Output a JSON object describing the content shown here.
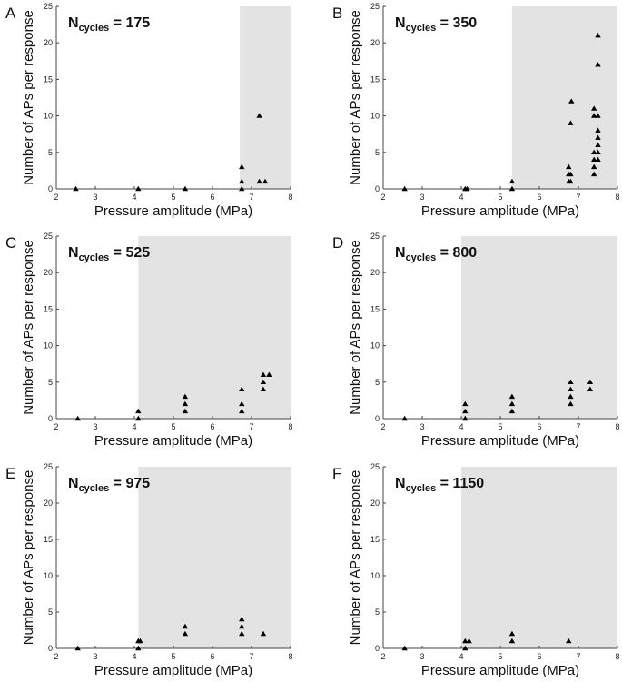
{
  "chart_data": [
    {
      "panel": "A",
      "type": "scatter",
      "annotation": {
        "main": "N",
        "sub": "cycles",
        "rest": " = 175"
      },
      "xlabel": "Pressure amplitude (MPa)",
      "ylabel": "Number of APs per response",
      "xlim": [
        2,
        8
      ],
      "ylim": [
        0,
        25
      ],
      "xticks": [
        2,
        3,
        4,
        5,
        6,
        7,
        8
      ],
      "yticks": [
        0,
        5,
        10,
        15,
        20,
        25
      ],
      "shade_from_x": 6.7,
      "points": [
        [
          2.5,
          0
        ],
        [
          4.1,
          0
        ],
        [
          5.3,
          0
        ],
        [
          6.75,
          0
        ],
        [
          6.75,
          1
        ],
        [
          6.75,
          3
        ],
        [
          7.2,
          1
        ],
        [
          7.2,
          10
        ],
        [
          7.35,
          1
        ]
      ]
    },
    {
      "panel": "B",
      "type": "scatter",
      "annotation": {
        "main": "N",
        "sub": "cycles",
        "rest": " = 350"
      },
      "xlabel": "Pressure amplitude (MPa)",
      "ylabel": "Number of APs per response",
      "xlim": [
        2,
        8
      ],
      "ylim": [
        0,
        25
      ],
      "xticks": [
        2,
        3,
        4,
        5,
        6,
        7,
        8
      ],
      "yticks": [
        0,
        5,
        10,
        15,
        20,
        25
      ],
      "shade_from_x": 5.3,
      "points": [
        [
          2.55,
          0
        ],
        [
          4.1,
          0
        ],
        [
          4.15,
          0
        ],
        [
          5.3,
          0
        ],
        [
          5.3,
          1
        ],
        [
          6.75,
          1
        ],
        [
          6.8,
          1
        ],
        [
          6.75,
          2
        ],
        [
          6.8,
          2
        ],
        [
          6.75,
          3
        ],
        [
          6.8,
          9
        ],
        [
          6.82,
          12
        ],
        [
          7.4,
          2
        ],
        [
          7.4,
          3
        ],
        [
          7.4,
          4
        ],
        [
          7.4,
          5
        ],
        [
          7.4,
          10
        ],
        [
          7.4,
          11
        ],
        [
          7.5,
          4
        ],
        [
          7.5,
          5
        ],
        [
          7.5,
          6
        ],
        [
          7.5,
          7
        ],
        [
          7.5,
          8
        ],
        [
          7.5,
          10
        ],
        [
          7.5,
          17
        ],
        [
          7.5,
          21
        ]
      ]
    },
    {
      "panel": "C",
      "type": "scatter",
      "annotation": {
        "main": "N",
        "sub": "cycles",
        "rest": " = 525"
      },
      "xlabel": "Pressure amplitude (MPa)",
      "ylabel": "Number of APs per response",
      "xlim": [
        2,
        8
      ],
      "ylim": [
        0,
        25
      ],
      "xticks": [
        2,
        3,
        4,
        5,
        6,
        7,
        8
      ],
      "yticks": [
        0,
        5,
        10,
        15,
        20,
        25
      ],
      "shade_from_x": 4.1,
      "points": [
        [
          2.55,
          0
        ],
        [
          4.1,
          0
        ],
        [
          4.1,
          1
        ],
        [
          5.3,
          1
        ],
        [
          5.3,
          2
        ],
        [
          5.3,
          3
        ],
        [
          6.75,
          1
        ],
        [
          6.75,
          2
        ],
        [
          6.75,
          4
        ],
        [
          7.3,
          4
        ],
        [
          7.3,
          5
        ],
        [
          7.3,
          6
        ],
        [
          7.45,
          6
        ]
      ]
    },
    {
      "panel": "D",
      "type": "scatter",
      "annotation": {
        "main": "N",
        "sub": "cycles",
        "rest": " = 800"
      },
      "xlabel": "Pressure amplitude (MPa)",
      "ylabel": "Number of APs per response",
      "xlim": [
        2,
        8
      ],
      "ylim": [
        0,
        25
      ],
      "xticks": [
        2,
        3,
        4,
        5,
        6,
        7,
        8
      ],
      "yticks": [
        0,
        5,
        10,
        15,
        20,
        25
      ],
      "shade_from_x": 4.0,
      "points": [
        [
          2.55,
          0
        ],
        [
          4.1,
          0
        ],
        [
          4.1,
          1
        ],
        [
          4.1,
          2
        ],
        [
          5.3,
          1
        ],
        [
          5.3,
          2
        ],
        [
          5.3,
          3
        ],
        [
          6.8,
          2
        ],
        [
          6.8,
          3
        ],
        [
          6.8,
          4
        ],
        [
          6.8,
          5
        ],
        [
          7.3,
          4
        ],
        [
          7.3,
          5
        ]
      ]
    },
    {
      "panel": "E",
      "type": "scatter",
      "annotation": {
        "main": "N",
        "sub": "cycles",
        "rest": " = 975"
      },
      "xlabel": "Pressure amplitude (MPa)",
      "ylabel": "Number of APs per response",
      "xlim": [
        2,
        8
      ],
      "ylim": [
        0,
        25
      ],
      "xticks": [
        2,
        3,
        4,
        5,
        6,
        7,
        8
      ],
      "yticks": [
        0,
        5,
        10,
        15,
        20,
        25
      ],
      "shade_from_x": 4.1,
      "points": [
        [
          2.55,
          0
        ],
        [
          4.1,
          0
        ],
        [
          4.1,
          1
        ],
        [
          4.15,
          1
        ],
        [
          5.3,
          2
        ],
        [
          5.3,
          3
        ],
        [
          6.75,
          2
        ],
        [
          6.75,
          3
        ],
        [
          6.75,
          4
        ],
        [
          7.3,
          2
        ]
      ]
    },
    {
      "panel": "F",
      "type": "scatter",
      "annotation": {
        "main": "N",
        "sub": "cycles",
        "rest": " = 1150"
      },
      "xlabel": "Pressure amplitude (MPa)",
      "ylabel": "Number of APs per response",
      "xlim": [
        2,
        8
      ],
      "ylim": [
        0,
        25
      ],
      "xticks": [
        2,
        3,
        4,
        5,
        6,
        7,
        8
      ],
      "yticks": [
        0,
        5,
        10,
        15,
        20,
        25
      ],
      "shade_from_x": 4.0,
      "points": [
        [
          2.55,
          0
        ],
        [
          4.1,
          0
        ],
        [
          4.1,
          1
        ],
        [
          4.2,
          1
        ],
        [
          5.3,
          1
        ],
        [
          5.3,
          2
        ],
        [
          6.75,
          1
        ]
      ]
    }
  ],
  "colors": {
    "shade": "#e3e3e3",
    "marker": "#000000",
    "axis": "#444444"
  }
}
